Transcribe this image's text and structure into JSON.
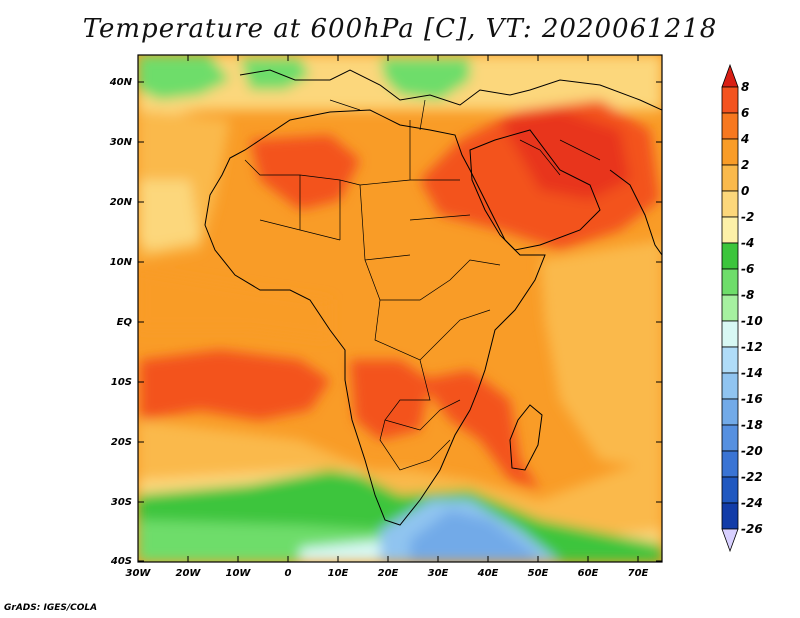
{
  "title": "Temperature at 600hPa [C], VT: 2020061218",
  "footer": "GrADS: IGES/COLA",
  "map": {
    "lat_labels": [
      "40N",
      "30N",
      "20N",
      "10N",
      "EQ",
      "10S",
      "20S",
      "30S",
      "40S"
    ],
    "lon_labels": [
      "30W",
      "20W",
      "10W",
      "0",
      "10E",
      "20E",
      "30E",
      "40E",
      "50E",
      "60E",
      "70E"
    ],
    "lat_range": [
      -40,
      45
    ],
    "lon_range": [
      -30,
      75
    ]
  },
  "colorbar": {
    "levels": [
      "8",
      "6",
      "4",
      "2",
      "0",
      "-2",
      "-4",
      "-6",
      "-8",
      "-10",
      "-12",
      "-14",
      "-16",
      "-18",
      "-20",
      "-22",
      "-24",
      "-26"
    ],
    "colors": [
      "#e8341c",
      "#f3531f",
      "#f7781f",
      "#f99c27",
      "#fab94b",
      "#fcd77b",
      "#fdf0a8",
      "#3cc53c",
      "#6edd6a",
      "#a6f0a0",
      "#d8f8f4",
      "#b0dcf8",
      "#90c4f0",
      "#72aae8",
      "#5690e0",
      "#3a74d4",
      "#2058c0",
      "#123ca8",
      "#0a1e80"
    ],
    "top_triangle_color": "#d81e14",
    "bottom_triangle_color": "#d8d0ff"
  }
}
